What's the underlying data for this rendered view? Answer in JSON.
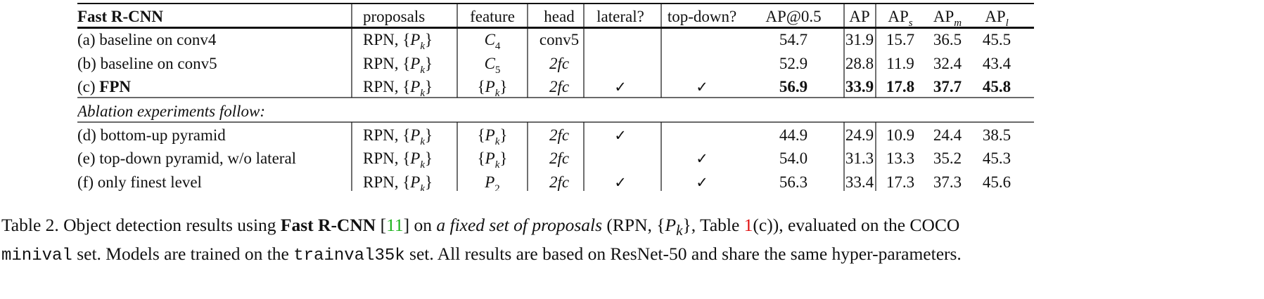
{
  "table": {
    "columns": [
      "Fast R-CNN",
      "proposals",
      "feature",
      "head",
      "lateral?",
      "top-down?",
      "AP@0.5",
      "AP",
      "APs",
      "APm",
      "APl"
    ],
    "header": {
      "method": "Fast R-CNN",
      "proposals": "proposals",
      "feature": "feature",
      "head": "head",
      "lateral": "lateral?",
      "topdown": "top-down?",
      "ap50": "AP@0.5",
      "ap": "AP",
      "ap_base": "AP",
      "ap_s_sub": "s",
      "ap_m_sub": "m",
      "ap_l_sub": "l"
    },
    "proposals_prefix": "RPN, {",
    "pk_symbol": "P",
    "pk_sub": "k",
    "brace_close": "}",
    "brace_open": "{",
    "check_mark": "✓",
    "rows": [
      {
        "method": "(a) baseline on conv4",
        "proposals": "RPN, {Pk}",
        "feature": "C4",
        "head": "conv5",
        "lateral": false,
        "topdown": false,
        "ap50": "54.7",
        "ap": "31.9",
        "ap_s": "15.7",
        "ap_m": "36.5",
        "ap_l": "45.5"
      },
      {
        "method": "(b) baseline on conv5",
        "proposals": "RPN, {Pk}",
        "feature": "C5",
        "head": "2fc",
        "lateral": false,
        "topdown": false,
        "ap50": "52.9",
        "ap": "28.8",
        "ap_s": "11.9",
        "ap_m": "32.4",
        "ap_l": "43.4"
      },
      {
        "method_prefix": "(c) ",
        "method_bold": "FPN",
        "proposals": "RPN, {Pk}",
        "feature": "{Pk}",
        "head": "2fc",
        "lateral": true,
        "topdown": true,
        "ap50": "56.9",
        "ap": "33.9",
        "ap_s": "17.8",
        "ap_m": "37.7",
        "ap_l": "45.8"
      }
    ],
    "section_label": "Ablation experiments follow:",
    "ablation_rows": [
      {
        "method": "(d) bottom-up pyramid",
        "proposals": "RPN, {Pk}",
        "feature": "{Pk}",
        "head": "2fc",
        "lateral": true,
        "topdown": false,
        "ap50": "44.9",
        "ap": "24.9",
        "ap_s": "10.9",
        "ap_m": "24.4",
        "ap_l": "38.5"
      },
      {
        "method": "(e) top-down pyramid, w/o lateral",
        "proposals": "RPN, {Pk}",
        "feature": "{Pk}",
        "head": "2fc",
        "lateral": false,
        "topdown": true,
        "ap50": "54.0",
        "ap": "31.3",
        "ap_s": "13.3",
        "ap_m": "35.2",
        "ap_l": "45.3"
      },
      {
        "method": "(f) only finest level",
        "proposals": "RPN, {Pk}",
        "feature": "P2",
        "head": "2fc",
        "lateral": true,
        "topdown": true,
        "ap50": "56.3",
        "ap": "33.4",
        "ap_s": "17.3",
        "ap_m": "37.3",
        "ap_l": "45.6"
      }
    ],
    "feature_c4": {
      "base": "C",
      "sub": "4"
    },
    "feature_c5": {
      "base": "C",
      "sub": "5"
    },
    "feature_p2": {
      "base": "P",
      "sub": "2"
    }
  },
  "caption": {
    "label": "Table 2. Object detection results using ",
    "method_bold": "Fast R-CNN",
    "space": " [",
    "ref_num": "11",
    "after_ref": "] on ",
    "italic_phrase": "a fixed set of proposals",
    "paren_open": " (RPN, {",
    "pk_base": "P",
    "pk_sub": "k",
    "paren_mid": "}, Table ",
    "table_ref": "1",
    "paren_close": "(c)), evaluated on the COCO",
    "mono_minival": "minival",
    "line2_a": " set. Models are trained on the ",
    "mono_trainval": "trainval35k",
    "line2_b": " set. All results are based on ResNet-50 and share the same hyper-parameters."
  },
  "colors": {
    "text": "#111111",
    "citation_green": "#1db31d",
    "table_ref_red": "#e01010"
  }
}
